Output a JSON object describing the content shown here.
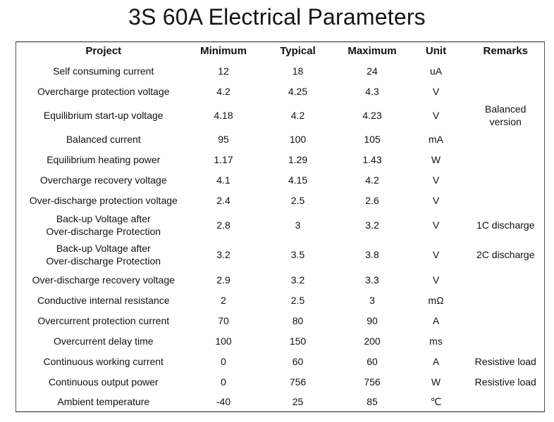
{
  "title": "3S 60A Electrical Parameters",
  "headers": {
    "project": "Project",
    "minimum": "Minimum",
    "typical": "Typical",
    "maximum": "Maximum",
    "unit": "Unit",
    "remarks": "Remarks"
  },
  "rows": [
    {
      "project": "Self consuming current",
      "min": "12",
      "typ": "18",
      "max": "24",
      "unit": "uA"
    },
    {
      "project": "Overcharge protection voltage",
      "min": "4.2",
      "typ": "4.25",
      "max": "4.3",
      "unit": "V"
    },
    {
      "project": "Equilibrium start-up voltage",
      "min": "4.18",
      "typ": "4.2",
      "max": "4.23",
      "unit": "V"
    },
    {
      "project": "Balanced current",
      "min": "95",
      "typ": "100",
      "max": "105",
      "unit": "mA"
    },
    {
      "project": "Equilibrium heating power",
      "min": "1.17",
      "typ": "1.29",
      "max": "1.43",
      "unit": "W"
    },
    {
      "project": "Overcharge recovery voltage",
      "min": "4.1",
      "typ": "4.15",
      "max": "4.2",
      "unit": "V"
    },
    {
      "project": "Over-discharge protection voltage",
      "min": "2.4",
      "typ": "2.5",
      "max": "2.6",
      "unit": "V"
    },
    {
      "project_line1": "Back-up Voltage after",
      "project_line2": "Over-discharge Protection",
      "min": "2.8",
      "typ": "3",
      "max": "3.2",
      "unit": "V",
      "remarks": "1C discharge"
    },
    {
      "project_line1": "Back-up Voltage after",
      "project_line2": "Over-discharge Protection",
      "min": "3.2",
      "typ": "3.5",
      "max": "3.8",
      "unit": "V",
      "remarks": "2C discharge"
    },
    {
      "project": "Over-discharge recovery voltage",
      "min": "2.9",
      "typ": "3.2",
      "max": "3.3",
      "unit": "V"
    },
    {
      "project": "Conductive internal resistance",
      "min": "2",
      "typ": "2.5",
      "max": "3",
      "unit": "mΩ"
    },
    {
      "project": "Overcurrent protection current",
      "min": "70",
      "typ": "80",
      "max": "90",
      "unit": "A"
    },
    {
      "project": "Overcurrent delay time",
      "min": "100",
      "typ": "150",
      "max": "200",
      "unit": "ms"
    },
    {
      "project": "Continuous working current",
      "min": "0",
      "typ": "60",
      "max": "60",
      "unit": "A",
      "remarks": "Resistive load"
    },
    {
      "project": "Continuous output power",
      "min": "0",
      "typ": "756",
      "max": "756",
      "unit": "W",
      "remarks": "Resistive load"
    },
    {
      "project": "Ambient temperature",
      "min": "-40",
      "typ": "25",
      "max": "85",
      "unit": "℃"
    }
  ],
  "balanced_remark": {
    "line1": "Balanced",
    "line2": "version"
  }
}
